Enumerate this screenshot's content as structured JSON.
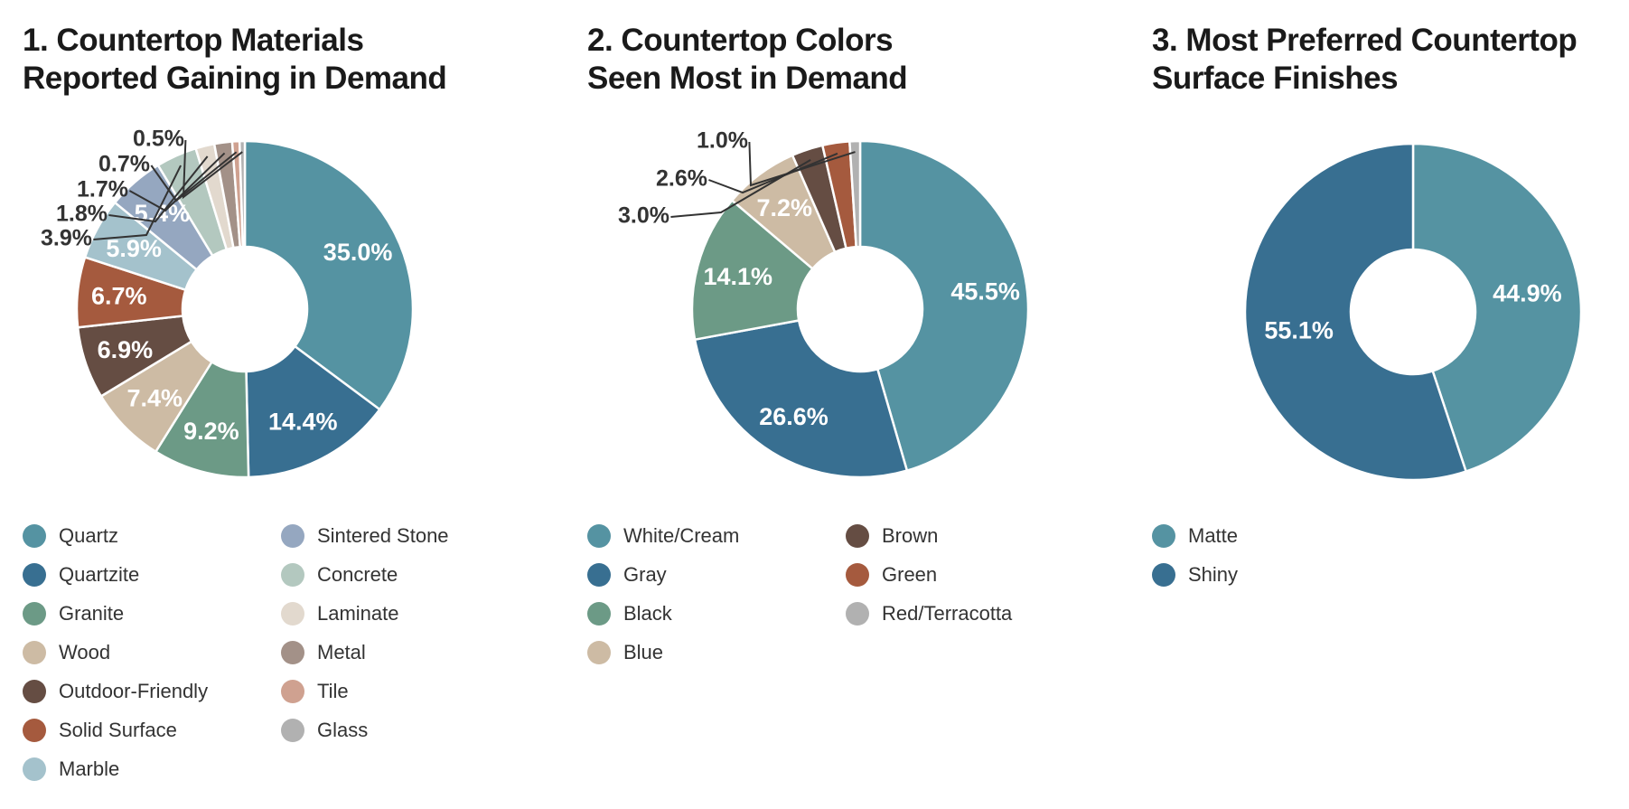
{
  "chart_data": [
    {
      "type": "pie",
      "title": [
        "1. Countertop Materials",
        "Reported Gaining in Demand"
      ],
      "categories": [
        "Quartz",
        "Quartzite",
        "Granite",
        "Wood",
        "Outdoor-Friendly",
        "Solid Surface",
        "Marble",
        "Sintered Stone",
        "Concrete",
        "Laminate",
        "Metal",
        "Tile",
        "Glass"
      ],
      "values": [
        35.0,
        14.4,
        9.2,
        7.4,
        6.9,
        6.7,
        5.9,
        5.4,
        3.9,
        1.8,
        1.7,
        0.7,
        0.5
      ],
      "labels": [
        "35.0%",
        "14.4%",
        "9.2%",
        "7.4%",
        "6.9%",
        "6.7%",
        "5.9%",
        "5.4%",
        "3.9%",
        "1.8%",
        "1.7%",
        "0.7%",
        "0.5%"
      ],
      "colors": [
        "#5593a2",
        "#386f91",
        "#6c9a86",
        "#cdbba4",
        "#654d43",
        "#a55a3e",
        "#a4c2cc",
        "#95a7c0",
        "#b3c8bf",
        "#e2d9ce",
        "#a39188",
        "#cfa190",
        "#b1b1b1"
      ],
      "legend": {
        "placement": "bottom",
        "columns": 2
      }
    },
    {
      "type": "pie",
      "title": [
        "2. Countertop Colors",
        "Seen Most in Demand"
      ],
      "categories": [
        "White/Cream",
        "Gray",
        "Black",
        "Blue",
        "Brown",
        "Green",
        "Red/Terracotta"
      ],
      "values": [
        45.5,
        26.6,
        14.1,
        7.2,
        3.0,
        2.6,
        1.0
      ],
      "labels": [
        "45.5%",
        "26.6%",
        "14.1%",
        "7.2%",
        "3.0%",
        "2.6%",
        "1.0%"
      ],
      "colors": [
        "#5593a2",
        "#386f91",
        "#6c9a86",
        "#cdbba4",
        "#654d43",
        "#a55a3e",
        "#b1b1b1"
      ],
      "legend": {
        "placement": "bottom",
        "columns": 2
      }
    },
    {
      "type": "pie",
      "title": [
        "3. Most Preferred Countertop",
        "Surface Finishes"
      ],
      "categories": [
        "Matte",
        "Shiny"
      ],
      "values": [
        44.9,
        55.1
      ],
      "labels": [
        "44.9%",
        "55.1%"
      ],
      "colors": [
        "#5593a2",
        "#386f91"
      ],
      "legend": {
        "placement": "bottom",
        "columns": 1
      }
    }
  ]
}
